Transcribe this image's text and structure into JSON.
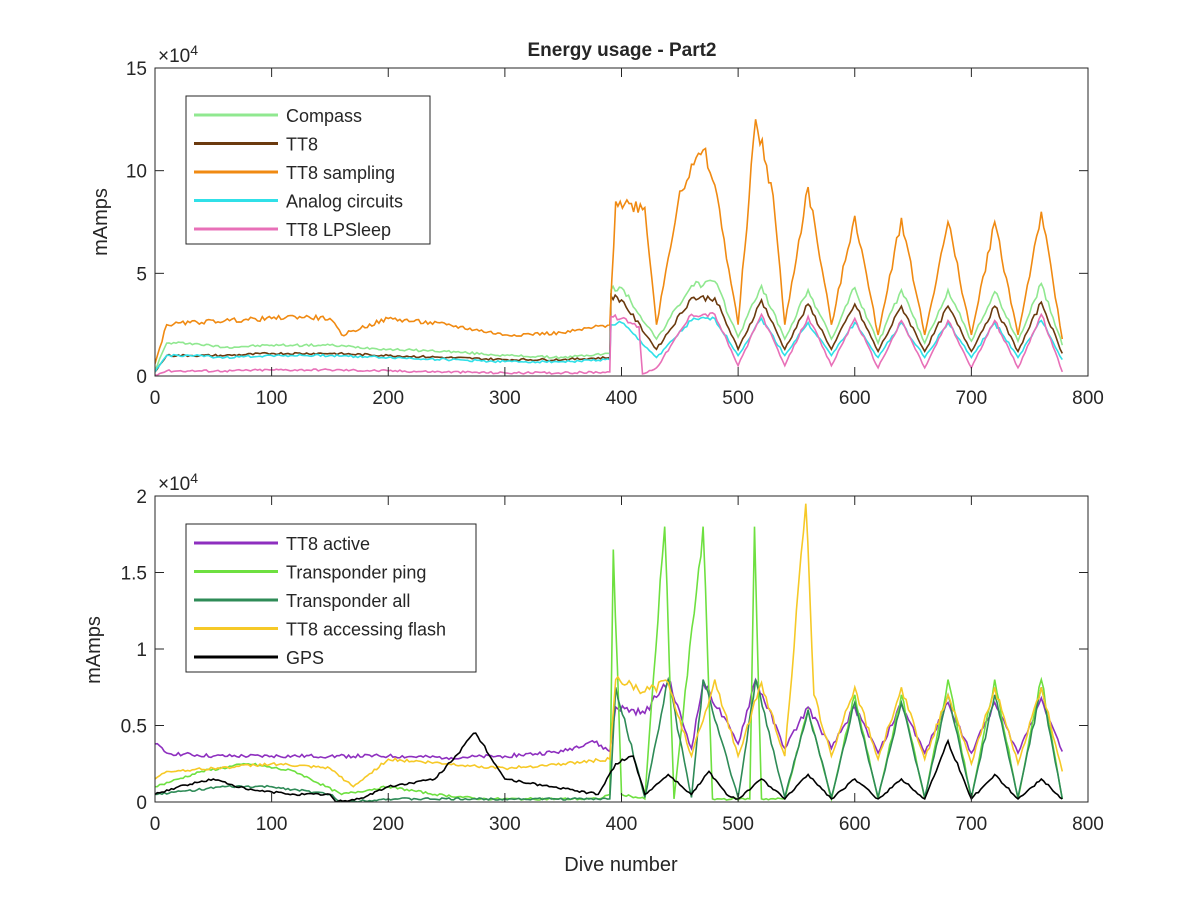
{
  "chart_data": [
    {
      "type": "line",
      "title": "Energy usage - Part2",
      "xlabel": "",
      "ylabel": "mAmps",
      "exponent_label": "×10",
      "exponent_power": "4",
      "xlim": [
        0,
        800
      ],
      "ylim": [
        0,
        15
      ],
      "y_scale": 10000,
      "xticks": [
        0,
        100,
        200,
        300,
        400,
        500,
        600,
        700,
        800
      ],
      "yticks": [
        0,
        5,
        10,
        15
      ],
      "xtick_labels": [
        "0",
        "100",
        "200",
        "300",
        "400",
        "500",
        "600",
        "700",
        "800"
      ],
      "ytick_labels": [
        "0",
        "5",
        "10",
        "15"
      ],
      "legend": "top-left",
      "grid": false,
      "series": [
        {
          "name": "Compass",
          "color": "#90e890",
          "x": [
            0,
            10,
            30,
            60,
            100,
            150,
            200,
            250,
            300,
            350,
            390,
            391,
            400,
            430,
            460,
            480,
            500,
            520,
            540,
            560,
            580,
            600,
            620,
            640,
            660,
            680,
            700,
            720,
            740,
            760,
            778
          ],
          "y": [
            0.3,
            1.6,
            1.6,
            1.4,
            1.5,
            1.5,
            1.3,
            1.2,
            1.0,
            0.9,
            1.1,
            4.2,
            4.3,
            1.8,
            4.4,
            4.6,
            1.9,
            4.4,
            1.8,
            4.2,
            1.8,
            4.3,
            1.6,
            4.2,
            1.6,
            4.2,
            1.7,
            4.1,
            1.7,
            4.5,
            1.5
          ]
        },
        {
          "name": "TT8",
          "color": "#6b3a0e",
          "x": [
            0,
            10,
            30,
            60,
            100,
            150,
            200,
            250,
            300,
            350,
            390,
            391,
            400,
            430,
            460,
            480,
            500,
            520,
            540,
            560,
            580,
            600,
            620,
            640,
            660,
            680,
            700,
            720,
            740,
            760,
            778
          ],
          "y": [
            0.2,
            1.0,
            1.0,
            1.0,
            1.1,
            1.1,
            1.0,
            0.9,
            0.8,
            0.8,
            0.9,
            3.9,
            3.7,
            1.3,
            3.8,
            3.8,
            1.3,
            3.7,
            1.3,
            3.5,
            1.3,
            3.5,
            1.2,
            3.4,
            1.2,
            3.4,
            1.2,
            3.4,
            1.2,
            3.6,
            1.1
          ]
        },
        {
          "name": "TT8 sampling",
          "color": "#f08a12",
          "x": [
            0,
            10,
            30,
            60,
            100,
            120,
            150,
            160,
            200,
            250,
            300,
            350,
            390,
            395,
            420,
            430,
            450,
            470,
            480,
            500,
            515,
            530,
            540,
            560,
            580,
            600,
            620,
            640,
            660,
            680,
            700,
            720,
            740,
            760,
            778
          ],
          "y": [
            0.6,
            2.5,
            2.6,
            2.7,
            2.8,
            2.9,
            2.8,
            2.0,
            2.8,
            2.5,
            2.0,
            2.1,
            2.5,
            8.5,
            8.2,
            2.5,
            9.0,
            11.0,
            9.3,
            2.5,
            12.5,
            8.8,
            2.5,
            9.2,
            2.5,
            7.8,
            2.0,
            7.7,
            2.0,
            7.5,
            2.0,
            7.5,
            2.0,
            8.0,
            1.8
          ]
        },
        {
          "name": "Analog circuits",
          "color": "#30e0e8",
          "x": [
            0,
            10,
            30,
            60,
            100,
            150,
            200,
            250,
            300,
            350,
            390,
            391,
            400,
            430,
            460,
            480,
            500,
            520,
            540,
            560,
            580,
            600,
            620,
            640,
            660,
            680,
            700,
            720,
            740,
            760,
            778
          ],
          "y": [
            0.2,
            1.0,
            1.0,
            0.9,
            1.0,
            1.0,
            0.9,
            0.8,
            0.7,
            0.7,
            0.8,
            2.5,
            2.6,
            0.9,
            2.7,
            2.8,
            1.0,
            2.8,
            1.0,
            2.6,
            1.0,
            2.6,
            0.9,
            2.6,
            0.9,
            2.6,
            0.9,
            2.6,
            0.9,
            2.7,
            0.8
          ]
        },
        {
          "name": "TT8 LPSleep",
          "color": "#e870b8",
          "x": [
            0,
            10,
            30,
            60,
            100,
            150,
            200,
            250,
            300,
            350,
            390,
            391,
            400,
            415,
            418,
            430,
            460,
            480,
            500,
            520,
            540,
            560,
            580,
            600,
            620,
            640,
            660,
            680,
            700,
            720,
            740,
            760,
            778
          ],
          "y": [
            0.05,
            0.25,
            0.25,
            0.25,
            0.3,
            0.3,
            0.25,
            0.2,
            0.15,
            0.15,
            0.2,
            2.9,
            2.8,
            2.4,
            0.1,
            0.4,
            3.0,
            3.0,
            0.5,
            3.0,
            0.5,
            2.9,
            0.5,
            2.8,
            0.4,
            2.7,
            0.4,
            2.7,
            0.4,
            2.7,
            0.4,
            3.0,
            0.2
          ]
        }
      ]
    },
    {
      "type": "line",
      "title": "",
      "xlabel": "Dive number",
      "ylabel": "mAmps",
      "exponent_label": "×10",
      "exponent_power": "4",
      "xlim": [
        0,
        800
      ],
      "ylim": [
        0,
        2
      ],
      "y_scale": 10000,
      "xticks": [
        0,
        100,
        200,
        300,
        400,
        500,
        600,
        700,
        800
      ],
      "yticks": [
        0,
        0.5,
        1,
        1.5,
        2
      ],
      "xtick_labels": [
        "0",
        "100",
        "200",
        "300",
        "400",
        "500",
        "600",
        "700",
        "800"
      ],
      "ytick_labels": [
        "0",
        "0.5",
        "1",
        "1.5",
        "2"
      ],
      "legend": "top-left",
      "grid": false,
      "series": [
        {
          "name": "TT8 active",
          "color": "#8e2fbf",
          "x": [
            0,
            10,
            50,
            100,
            150,
            200,
            250,
            300,
            350,
            375,
            390,
            395,
            420,
            440,
            460,
            470,
            500,
            515,
            540,
            560,
            580,
            600,
            620,
            640,
            660,
            680,
            700,
            720,
            740,
            760,
            778
          ],
          "y": [
            0.38,
            0.32,
            0.3,
            0.3,
            0.3,
            0.3,
            0.29,
            0.3,
            0.33,
            0.4,
            0.33,
            0.62,
            0.58,
            0.8,
            0.35,
            0.78,
            0.38,
            0.8,
            0.35,
            0.62,
            0.35,
            0.62,
            0.32,
            0.64,
            0.32,
            0.65,
            0.32,
            0.65,
            0.32,
            0.68,
            0.33
          ]
        },
        {
          "name": "Transponder ping",
          "color": "#6ee040",
          "x": [
            0,
            40,
            80,
            120,
            160,
            200,
            240,
            280,
            320,
            380,
            390,
            393,
            400,
            420,
            437,
            445,
            470,
            478,
            510,
            514,
            520,
            540,
            560,
            580,
            600,
            620,
            640,
            660,
            680,
            700,
            720,
            740,
            760,
            778
          ],
          "y": [
            0.1,
            0.2,
            0.25,
            0.2,
            0.05,
            0.1,
            0.05,
            0.02,
            0.02,
            0.02,
            0.05,
            1.65,
            0.05,
            0.02,
            1.8,
            0.02,
            1.8,
            0.02,
            0.02,
            1.8,
            0.02,
            0.02,
            0.6,
            0.02,
            0.7,
            0.02,
            0.7,
            0.02,
            0.8,
            0.02,
            0.8,
            0.02,
            0.8,
            0.02
          ]
        },
        {
          "name": "Transponder all",
          "color": "#2e8b57",
          "x": [
            0,
            60,
            100,
            150,
            160,
            200,
            300,
            390,
            395,
            420,
            440,
            460,
            470,
            500,
            515,
            540,
            560,
            580,
            600,
            620,
            640,
            660,
            680,
            700,
            720,
            740,
            760,
            778
          ],
          "y": [
            0.05,
            0.1,
            0.1,
            0.05,
            0.0,
            0.02,
            0.02,
            0.02,
            0.75,
            0.03,
            0.8,
            0.03,
            0.8,
            0.03,
            0.8,
            0.03,
            0.6,
            0.03,
            0.65,
            0.03,
            0.65,
            0.03,
            0.7,
            0.03,
            0.7,
            0.03,
            0.75,
            0.02
          ]
        },
        {
          "name": "TT8 accessing flash",
          "color": "#f6c927",
          "x": [
            0,
            10,
            50,
            100,
            150,
            170,
            200,
            250,
            300,
            350,
            390,
            395,
            420,
            440,
            460,
            480,
            500,
            520,
            540,
            558,
            565,
            580,
            600,
            620,
            640,
            660,
            680,
            700,
            720,
            740,
            760,
            778
          ],
          "y": [
            0.15,
            0.2,
            0.22,
            0.25,
            0.22,
            0.1,
            0.28,
            0.25,
            0.22,
            0.25,
            0.28,
            0.8,
            0.72,
            0.78,
            0.3,
            0.8,
            0.3,
            0.78,
            0.3,
            1.95,
            0.7,
            0.3,
            0.75,
            0.28,
            0.75,
            0.28,
            0.7,
            0.25,
            0.75,
            0.25,
            0.75,
            0.2
          ]
        },
        {
          "name": "GPS",
          "color": "#000000",
          "x": [
            0,
            20,
            50,
            80,
            120,
            150,
            155,
            175,
            200,
            240,
            275,
            300,
            340,
            380,
            395,
            410,
            420,
            440,
            460,
            475,
            490,
            500,
            520,
            540,
            560,
            580,
            600,
            620,
            640,
            660,
            680,
            700,
            720,
            740,
            760,
            778
          ],
          "y": [
            0.05,
            0.1,
            0.15,
            0.08,
            0.05,
            0.05,
            0.0,
            0.02,
            0.1,
            0.15,
            0.45,
            0.15,
            0.1,
            0.05,
            0.25,
            0.3,
            0.05,
            0.18,
            0.05,
            0.2,
            0.05,
            0.02,
            0.15,
            0.02,
            0.18,
            0.02,
            0.15,
            0.02,
            0.15,
            0.02,
            0.4,
            0.02,
            0.18,
            0.02,
            0.15,
            0.02
          ]
        }
      ]
    }
  ]
}
